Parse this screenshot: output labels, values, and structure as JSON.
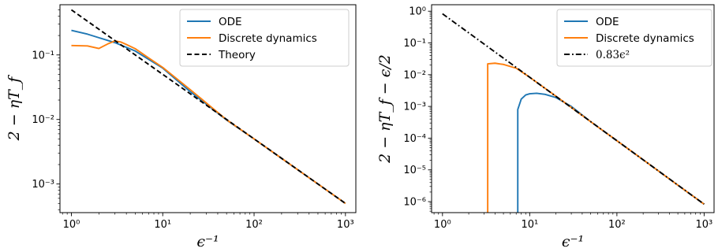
{
  "chart_data": [
    {
      "type": "line",
      "xscale": "log",
      "yscale": "log",
      "xlim": [
        0.75,
        1300
      ],
      "ylim": [
        0.00036,
        0.6
      ],
      "xticks": [
        {
          "value": 1,
          "label": "10⁰"
        },
        {
          "value": 10,
          "label": "10¹"
        },
        {
          "value": 100,
          "label": "10²"
        },
        {
          "value": 1000,
          "label": "10³"
        }
      ],
      "yticks": [
        {
          "value": 0.001,
          "label": "10⁻³"
        },
        {
          "value": 0.01,
          "label": "10⁻²"
        },
        {
          "value": 0.1,
          "label": "10⁻¹"
        }
      ],
      "xlabel": "ϵ⁻¹",
      "ylabel": "2 − ηT_f",
      "legend_position": "top-right",
      "series": [
        {
          "name": "ODE",
          "color": "#1f77b4",
          "dash": "solid",
          "x": [
            1,
            1.5,
            2,
            3,
            5,
            10,
            20,
            50,
            100,
            200,
            500,
            1000
          ],
          "y": [
            0.24,
            0.21,
            0.185,
            0.155,
            0.115,
            0.0625,
            0.027,
            0.0098,
            0.005,
            0.0025,
            0.001,
            0.0005
          ]
        },
        {
          "name": "Discrete dynamics",
          "color": "#ff7f0e",
          "dash": "solid",
          "x": [
            1,
            1.5,
            2,
            2.5,
            3,
            3.5,
            4,
            5,
            7,
            10,
            20,
            50,
            100,
            200,
            500,
            1000
          ],
          "y": [
            0.14,
            0.138,
            0.126,
            0.148,
            0.165,
            0.158,
            0.145,
            0.125,
            0.09,
            0.064,
            0.029,
            0.0099,
            0.005,
            0.0025,
            0.001,
            0.0005
          ]
        },
        {
          "name": "Theory",
          "color": "#000000",
          "dash": "dashed",
          "x": [
            1,
            1000
          ],
          "y": [
            0.5,
            0.0005
          ]
        }
      ]
    },
    {
      "type": "line",
      "xscale": "log",
      "yscale": "log",
      "xlim": [
        0.75,
        1300
      ],
      "ylim": [
        4.5e-07,
        1.6
      ],
      "xticks": [
        {
          "value": 1,
          "label": "10⁰"
        },
        {
          "value": 10,
          "label": "10¹"
        },
        {
          "value": 100,
          "label": "10²"
        },
        {
          "value": 1000,
          "label": "10³"
        }
      ],
      "yticks": [
        {
          "value": 1e-06,
          "label": "10⁻⁶"
        },
        {
          "value": 1e-05,
          "label": "10⁻⁵"
        },
        {
          "value": 0.0001,
          "label": "10⁻⁴"
        },
        {
          "value": 0.001,
          "label": "10⁻³"
        },
        {
          "value": 0.01,
          "label": "10⁻²"
        },
        {
          "value": 0.1,
          "label": "10⁻¹"
        },
        {
          "value": 1,
          "label": "10⁰"
        }
      ],
      "xlabel": "ϵ⁻¹",
      "ylabel": "2 − ηT_f − ϵ/2",
      "legend_position": "top-right",
      "series": [
        {
          "name": "ODE",
          "color": "#1f77b4",
          "dash": "solid",
          "x": [
            7.3,
            7.3,
            8,
            9,
            10,
            12,
            15,
            20,
            30,
            50,
            100,
            200,
            500,
            1000
          ],
          "y": [
            4.5e-07,
            0.0008,
            0.0017,
            0.0023,
            0.0025,
            0.0026,
            0.0024,
            0.0019,
            0.001,
            0.00033,
            8.3e-05,
            2.08e-05,
            3.3e-06,
            8.3e-07
          ]
        },
        {
          "name": "Discrete dynamics",
          "color": "#ff7f0e",
          "dash": "solid",
          "x": [
            3.3,
            3.3,
            4,
            5,
            7,
            10,
            20,
            50,
            100,
            200,
            500,
            1000
          ],
          "y": [
            4.5e-07,
            0.022,
            0.023,
            0.021,
            0.016,
            0.0083,
            0.0021,
            0.00033,
            8.3e-05,
            2.08e-05,
            3.3e-06,
            8.3e-07
          ]
        },
        {
          "name": "0.83ϵ²",
          "color": "#000000",
          "dash": "dashdot",
          "x": [
            1,
            1000
          ],
          "y": [
            0.83,
            8.3e-07
          ]
        }
      ]
    }
  ]
}
